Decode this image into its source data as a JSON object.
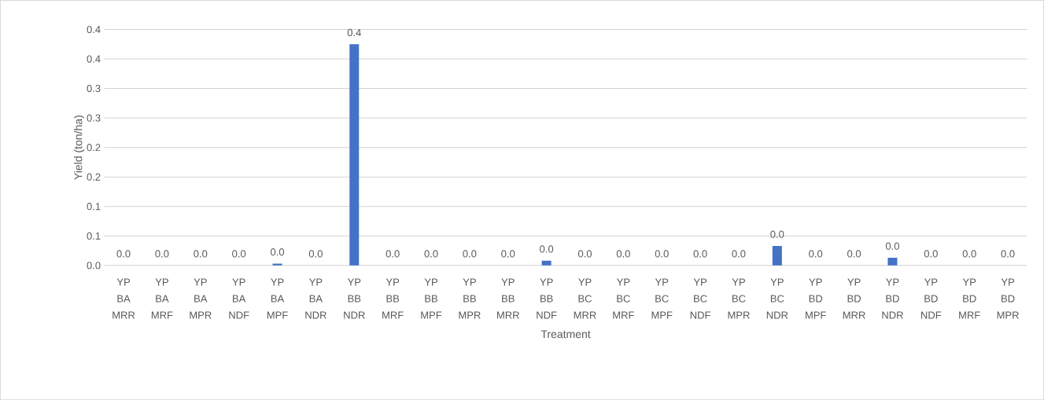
{
  "chart_data": {
    "type": "bar",
    "xlabel": "Treatment",
    "ylabel": "Yield (ton/ha)",
    "categories": [
      "YP BA MRR",
      "YP BA MRF",
      "YP BA MPR",
      "YP BA NDF",
      "YP BA MPF",
      "YP BA NDR",
      "YP BB NDR",
      "YP BB MRF",
      "YP BB MPF",
      "YP BB MPR",
      "YP BB MRR",
      "YP BB NDF",
      "YP BC MRR",
      "YP BC MRF",
      "YP BC MPF",
      "YP BC NDF",
      "YP BC MPR",
      "YP BC NDR",
      "YP BD MPF",
      "YP BD MRR",
      "YP BD NDR",
      "YP BD NDF",
      "YP BD MRF",
      "YP BD MPR"
    ],
    "values": [
      0,
      0,
      0,
      0,
      0.003,
      0,
      0.375,
      0,
      0,
      0,
      0,
      0.008,
      0,
      0,
      0,
      0,
      0,
      0.033,
      0,
      0,
      0.013,
      0,
      0,
      0
    ],
    "value_labels": [
      "0.0",
      "0.0",
      "0.0",
      "0.0",
      "0.0",
      "0.0",
      "0.4",
      "0.0",
      "0.0",
      "0.0",
      "0.0",
      "0.0",
      "0.0",
      "0.0",
      "0.0",
      "0.0",
      "0.0",
      "0.0",
      "0.0",
      "0.0",
      "0.0",
      "0.0",
      "0.0",
      "0.0"
    ],
    "color": "#4472c4",
    "ylim": [
      0,
      0.4
    ],
    "yticks": [
      {
        "value": 0,
        "label": "0.0"
      },
      {
        "value": 0.05,
        "label": "0.1"
      },
      {
        "value": 0.1,
        "label": "0.1"
      },
      {
        "value": 0.15,
        "label": "0.2"
      },
      {
        "value": 0.2,
        "label": "0.2"
      },
      {
        "value": 0.25,
        "label": "0.3"
      },
      {
        "value": 0.3,
        "label": "0.3"
      },
      {
        "value": 0.35,
        "label": "0.4"
      },
      {
        "value": 0.4,
        "label": "0.4"
      }
    ],
    "grid": "y"
  }
}
